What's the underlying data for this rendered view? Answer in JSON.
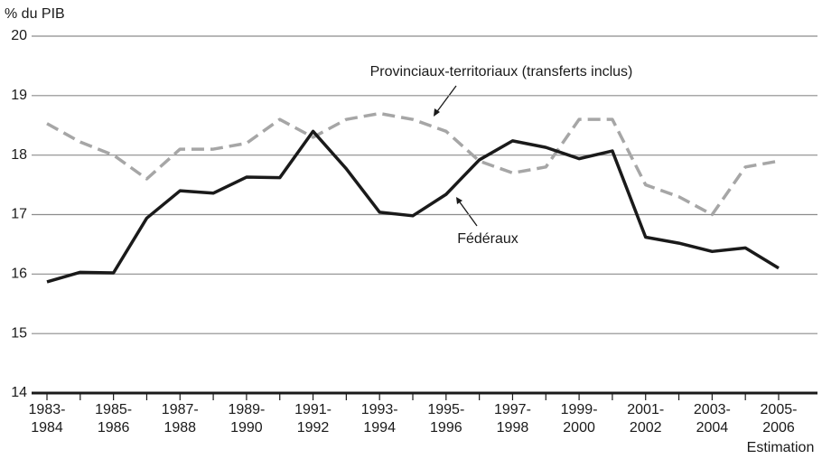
{
  "chart_data": {
    "type": "line",
    "y_axis_label": "% du PIB",
    "categories": [
      "1983-\n1984",
      null,
      "1985-\n1986",
      null,
      "1987-\n1988",
      null,
      "1989-\n1990",
      null,
      "1991-\n1992",
      null,
      "1993-\n1994",
      null,
      "1995-\n1996",
      null,
      "1997-\n1998",
      null,
      "1999-\n2000",
      null,
      "2001-\n2002",
      null,
      "2003-\n2004",
      null,
      "2005-\n2006"
    ],
    "series": [
      {
        "name": "Fédéraux",
        "color": "#1a1a1a",
        "style": "solid",
        "values": [
          15.87,
          16.03,
          16.02,
          16.94,
          17.4,
          17.36,
          17.63,
          17.62,
          18.4,
          17.77,
          17.04,
          16.98,
          17.34,
          17.92,
          18.24,
          18.13,
          17.94,
          18.07,
          16.62,
          16.52,
          16.38,
          16.44,
          16.1
        ]
      },
      {
        "name": "Provinciaux-territoriaux (transferts inclus)",
        "color": "#a6a6a6",
        "style": "dashed",
        "values": [
          18.53,
          18.22,
          18.0,
          17.6,
          18.1,
          18.1,
          18.2,
          18.6,
          18.3,
          18.6,
          18.7,
          18.6,
          18.4,
          17.9,
          17.7,
          17.8,
          18.6,
          18.6,
          17.5,
          17.3,
          17.0,
          17.8,
          17.9
        ]
      }
    ],
    "last_category_note": "Estimation",
    "ylim": [
      14,
      20
    ],
    "yticks": [
      14,
      15,
      16,
      17,
      18,
      19,
      20
    ],
    "grid": true
  }
}
